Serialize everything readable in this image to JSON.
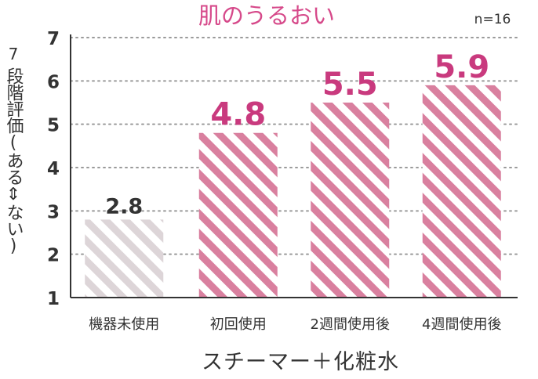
{
  "chart_data": {
    "type": "bar",
    "title": "肌のうるおい",
    "note": "n=16",
    "ylabel_top": "7",
    "ylabel": "段階評価(ある⇕ない)",
    "xlabel": "スチーマー＋化粧水",
    "ylim": [
      1,
      7
    ],
    "yticks": [
      1,
      2,
      3,
      4,
      5,
      6,
      7
    ],
    "grid": true,
    "categories": [
      "機器未使用",
      "初回使用",
      "2週間使用後",
      "4週間使用後"
    ],
    "values": [
      2.8,
      4.8,
      5.5,
      5.9
    ],
    "value_labels": [
      "2.8",
      "4.8",
      "5.5",
      "5.9"
    ],
    "colors": {
      "title": "#d6498a",
      "value_highlight": "#c93a7e",
      "value_base": "#333333",
      "bar_stripe_highlight": "#d9809f",
      "bar_stripe_base": "#ddd5d8",
      "grid": "#9a9a9a",
      "axis": "#333333",
      "text": "#333333"
    }
  }
}
